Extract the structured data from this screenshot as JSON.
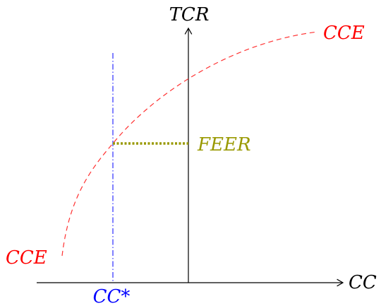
{
  "labels": {
    "y_axis": "TCR",
    "x_axis": "CC",
    "curve_top": "CCE",
    "curve_bottom": "CCE",
    "feer": "FEER",
    "cc_star": "CC*"
  }
}
